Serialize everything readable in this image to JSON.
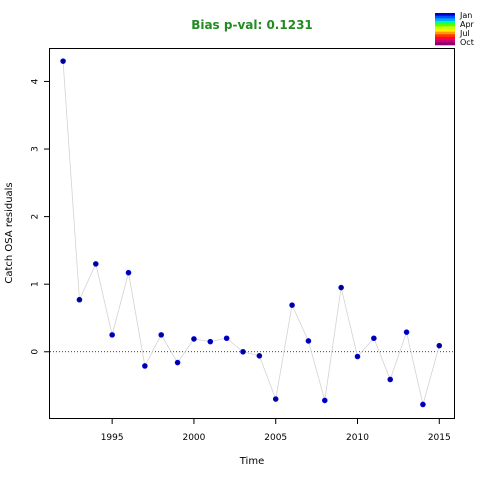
{
  "chart_data": {
    "type": "scatter",
    "title": "Bias p-val: 0.1231",
    "title_color": "#228B22",
    "xlabel": "Time",
    "ylabel": "Catch OSA residuals",
    "xlim": [
      1991.2,
      2015.9
    ],
    "ylim": [
      -0.98,
      4.48
    ],
    "xticks": [
      1995,
      2000,
      2005,
      2010,
      2015
    ],
    "yticks": [
      0,
      1,
      2,
      3,
      4
    ],
    "reference_line": 0,
    "grid": false,
    "line_color": "#d3d3d3",
    "point_fill": "#00008B",
    "point_outline": "#0000FF",
    "legend": {
      "placement": "top-right",
      "labels": [
        "Jan",
        "Apr",
        "Jul",
        "Oct"
      ],
      "colors": [
        "#0000CC",
        "#0050FF",
        "#00AAFF",
        "#00FF80",
        "#55FF00",
        "#CCFF00",
        "#FFEE00",
        "#FF9900",
        "#FF3300",
        "#FF0044",
        "#CC0066",
        "#880077"
      ]
    },
    "series": [
      {
        "x": [
          1992,
          1993,
          1994,
          1995,
          1996,
          1997,
          1998,
          1999,
          2000,
          2001,
          2002,
          2003,
          2004,
          2005,
          2006,
          2007,
          2008,
          2009,
          2010,
          2011,
          2012,
          2013,
          2014,
          2015
        ],
        "y": [
          4.3,
          0.77,
          1.3,
          0.25,
          1.17,
          -0.21,
          0.25,
          -0.16,
          0.19,
          0.15,
          0.2,
          0.0,
          -0.06,
          -0.7,
          0.69,
          0.16,
          -0.72,
          0.95,
          -0.07,
          0.2,
          -0.41,
          0.29,
          -0.78,
          0.09
        ]
      }
    ]
  }
}
